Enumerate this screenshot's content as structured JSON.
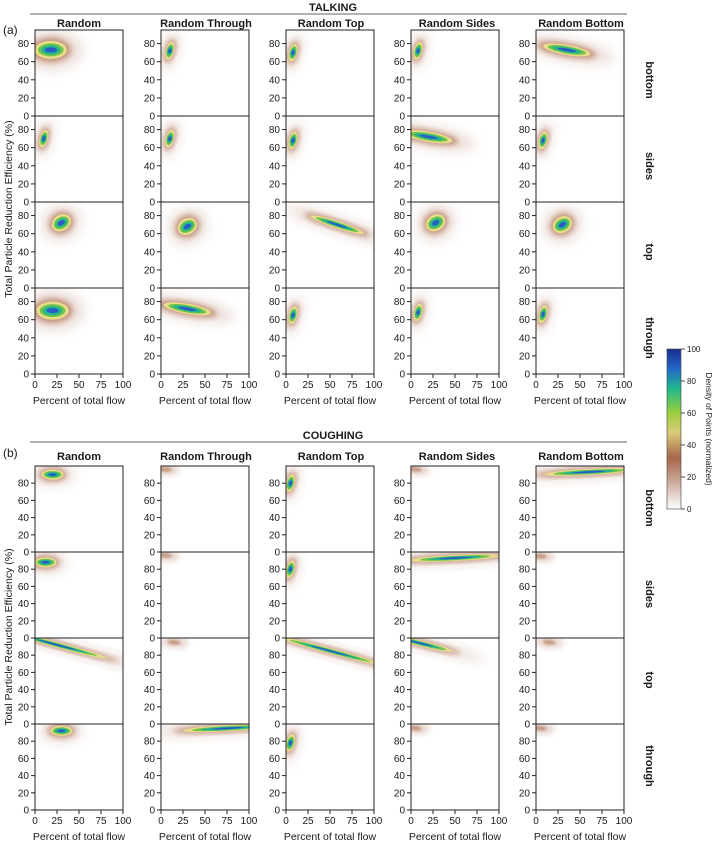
{
  "figure": {
    "sections": [
      {
        "panel_label": "(a)",
        "title": "TALKING"
      },
      {
        "panel_label": "(b)",
        "title": "COUGHING"
      }
    ],
    "column_titles": [
      "Random",
      "Random Through",
      "Random Top",
      "Random Sides",
      "Random Bottom"
    ],
    "row_labels": [
      "bottom",
      "sides",
      "top",
      "through"
    ],
    "xlabel": "Percent of total flow",
    "ylabel": "Total Particle Reduction Efficiency (%)",
    "colorbar": {
      "label": "Density of Points (normalized)",
      "ticks": [
        "0",
        "20",
        "40",
        "60",
        "80",
        "100"
      ],
      "colors": [
        "#ffffff",
        "#a8674a",
        "#d9cd7a",
        "#9dcd3c",
        "#1fb98a",
        "#2166c8",
        "#1a2e8c"
      ]
    },
    "a_xticks": [
      "0",
      "25",
      "50",
      "75",
      "100"
    ],
    "a_yticks": [
      "0",
      "20",
      "40",
      "60",
      "80"
    ],
    "b_xticks": [
      "0",
      "25",
      "50",
      "75",
      "100"
    ],
    "b_yticks": [
      "0",
      "20",
      "40",
      "60",
      "80"
    ]
  },
  "chart_data": [
    {
      "type": "heatmap",
      "title": "TALKING",
      "xlabel": "Percent of total flow",
      "ylabel": "Total Particle Reduction Efficiency (%)",
      "xlim": [
        0,
        100
      ],
      "ylim": [
        0,
        95
      ],
      "rows": [
        "bottom",
        "sides",
        "top",
        "through"
      ],
      "columns": [
        "Random",
        "Random Through",
        "Random Top",
        "Random Sides",
        "Random Bottom"
      ],
      "density_peaks": [
        [
          {
            "column": "Random",
            "x": 18,
            "y": 73,
            "shape": "broad blob"
          },
          {
            "column": "Random Through",
            "x": 10,
            "y": 72,
            "shape": "hook"
          },
          {
            "column": "Random Top",
            "x": 8,
            "y": 70,
            "shape": "hook"
          },
          {
            "column": "Random Sides",
            "x": 8,
            "y": 72,
            "shape": "hook"
          },
          {
            "column": "Random Bottom",
            "x": 35,
            "y": 73,
            "shape": "arc 5-60"
          }
        ],
        [
          {
            "column": "Random",
            "x": 10,
            "y": 70,
            "shape": "hook"
          },
          {
            "column": "Random Through",
            "x": 10,
            "y": 70,
            "shape": "hook"
          },
          {
            "column": "Random Top",
            "x": 8,
            "y": 68,
            "shape": "hook"
          },
          {
            "column": "Random Sides",
            "x": 20,
            "y": 72,
            "shape": "arc"
          },
          {
            "column": "Random Bottom",
            "x": 8,
            "y": 68,
            "shape": "hook"
          }
        ],
        [
          {
            "column": "Random",
            "x": 30,
            "y": 72,
            "shape": "curved"
          },
          {
            "column": "Random Through",
            "x": 30,
            "y": 68,
            "shape": "curved"
          },
          {
            "column": "Random Top",
            "x": 58,
            "y": 70,
            "shape": "band 45-80"
          },
          {
            "column": "Random Sides",
            "x": 28,
            "y": 72,
            "shape": "curved"
          },
          {
            "column": "Random Bottom",
            "x": 30,
            "y": 70,
            "shape": "curved"
          }
        ],
        [
          {
            "column": "Random",
            "x": 20,
            "y": 70,
            "shape": "broad blob"
          },
          {
            "column": "Random Through",
            "x": 30,
            "y": 72,
            "shape": "arc 5-60"
          },
          {
            "column": "Random Top",
            "x": 8,
            "y": 65,
            "shape": "hook"
          },
          {
            "column": "Random Sides",
            "x": 8,
            "y": 68,
            "shape": "hook"
          },
          {
            "column": "Random Bottom",
            "x": 8,
            "y": 66,
            "shape": "hook"
          }
        ]
      ]
    },
    {
      "type": "heatmap",
      "title": "COUGHING",
      "xlabel": "Percent of total flow",
      "ylabel": "Total Particle Reduction Efficiency (%)",
      "xlim": [
        0,
        100
      ],
      "ylim": [
        0,
        100
      ],
      "rows": [
        "bottom",
        "sides",
        "top",
        "through"
      ],
      "columns": [
        "Random",
        "Random Through",
        "Random Top",
        "Random Sides",
        "Random Bottom"
      ],
      "density_peaks": [
        [
          {
            "column": "Random",
            "x": 20,
            "y": 90,
            "shape": "blob"
          },
          {
            "column": "Random Through",
            "x": 5,
            "y": 96,
            "shape": "faint"
          },
          {
            "column": "Random Top",
            "x": 5,
            "y": 80,
            "shape": "hook"
          },
          {
            "column": "Random Sides",
            "x": 5,
            "y": 96,
            "shape": "faint"
          },
          {
            "column": "Random Bottom",
            "x": 60,
            "y": 93,
            "shape": "band 0-100"
          }
        ],
        [
          {
            "column": "Random",
            "x": 12,
            "y": 88,
            "shape": "blob"
          },
          {
            "column": "Random Through",
            "x": 5,
            "y": 96,
            "shape": "faint"
          },
          {
            "column": "Random Top",
            "x": 5,
            "y": 80,
            "shape": "hook"
          },
          {
            "column": "Random Sides",
            "x": 50,
            "y": 93,
            "shape": "band"
          },
          {
            "column": "Random Bottom",
            "x": 5,
            "y": 95,
            "shape": "faint"
          }
        ],
        [
          {
            "column": "Random",
            "x": 25,
            "y": 92,
            "shape": "diagonal band"
          },
          {
            "column": "Random Through",
            "x": 15,
            "y": 95,
            "shape": "faint diagonal"
          },
          {
            "column": "Random Top",
            "x": 50,
            "y": 85,
            "shape": "diagonal band 0-100"
          },
          {
            "column": "Random Sides",
            "x": 10,
            "y": 94,
            "shape": "diagonal"
          },
          {
            "column": "Random Bottom",
            "x": 15,
            "y": 95,
            "shape": "faint diagonal"
          }
        ],
        [
          {
            "column": "Random",
            "x": 30,
            "y": 92,
            "shape": "blob"
          },
          {
            "column": "Random Through",
            "x": 75,
            "y": 95,
            "shape": "band 0-100"
          },
          {
            "column": "Random Top",
            "x": 5,
            "y": 78,
            "shape": "hook"
          },
          {
            "column": "Random Sides",
            "x": 5,
            "y": 95,
            "shape": "faint"
          },
          {
            "column": "Random Bottom",
            "x": 5,
            "y": 95,
            "shape": "faint"
          }
        ]
      ]
    }
  ]
}
